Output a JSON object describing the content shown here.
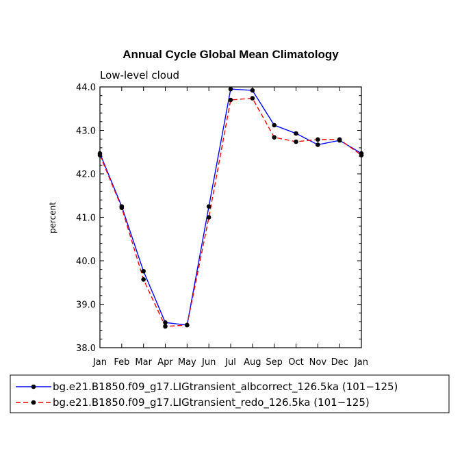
{
  "chart_data": {
    "type": "line",
    "title": "Annual Cycle Global Mean Climatology",
    "subtitle": "Low-level cloud",
    "ylabel": "percent",
    "xlabel": "",
    "categories": [
      "Jan",
      "Feb",
      "Mar",
      "Apr",
      "May",
      "Jun",
      "Jul",
      "Aug",
      "Sep",
      "Oct",
      "Nov",
      "Dec",
      "Jan"
    ],
    "ylim": [
      38.0,
      44.0
    ],
    "yticks": [
      "38.0",
      "39.0",
      "40.0",
      "41.0",
      "42.0",
      "43.0",
      "44.0"
    ],
    "legend_position": "bottom",
    "series": [
      {
        "name": "bg.e21.B1850.f09_g17.LIGtransient_albcorrect_126.5ka (101−125)",
        "color": "#0000ff",
        "dash": "solid",
        "values": [
          42.47,
          41.25,
          39.76,
          38.58,
          38.52,
          41.25,
          43.95,
          43.92,
          43.12,
          42.93,
          42.67,
          42.77,
          42.47
        ]
      },
      {
        "name": "bg.e21.B1850.f09_g17.LIGtransient_redo_126.5ka (101−125)",
        "color": "#ff0000",
        "dash": "dashed",
        "values": [
          42.43,
          41.22,
          39.57,
          38.49,
          38.52,
          41.0,
          43.7,
          43.74,
          42.84,
          42.74,
          42.79,
          42.79,
          42.43
        ]
      }
    ]
  }
}
